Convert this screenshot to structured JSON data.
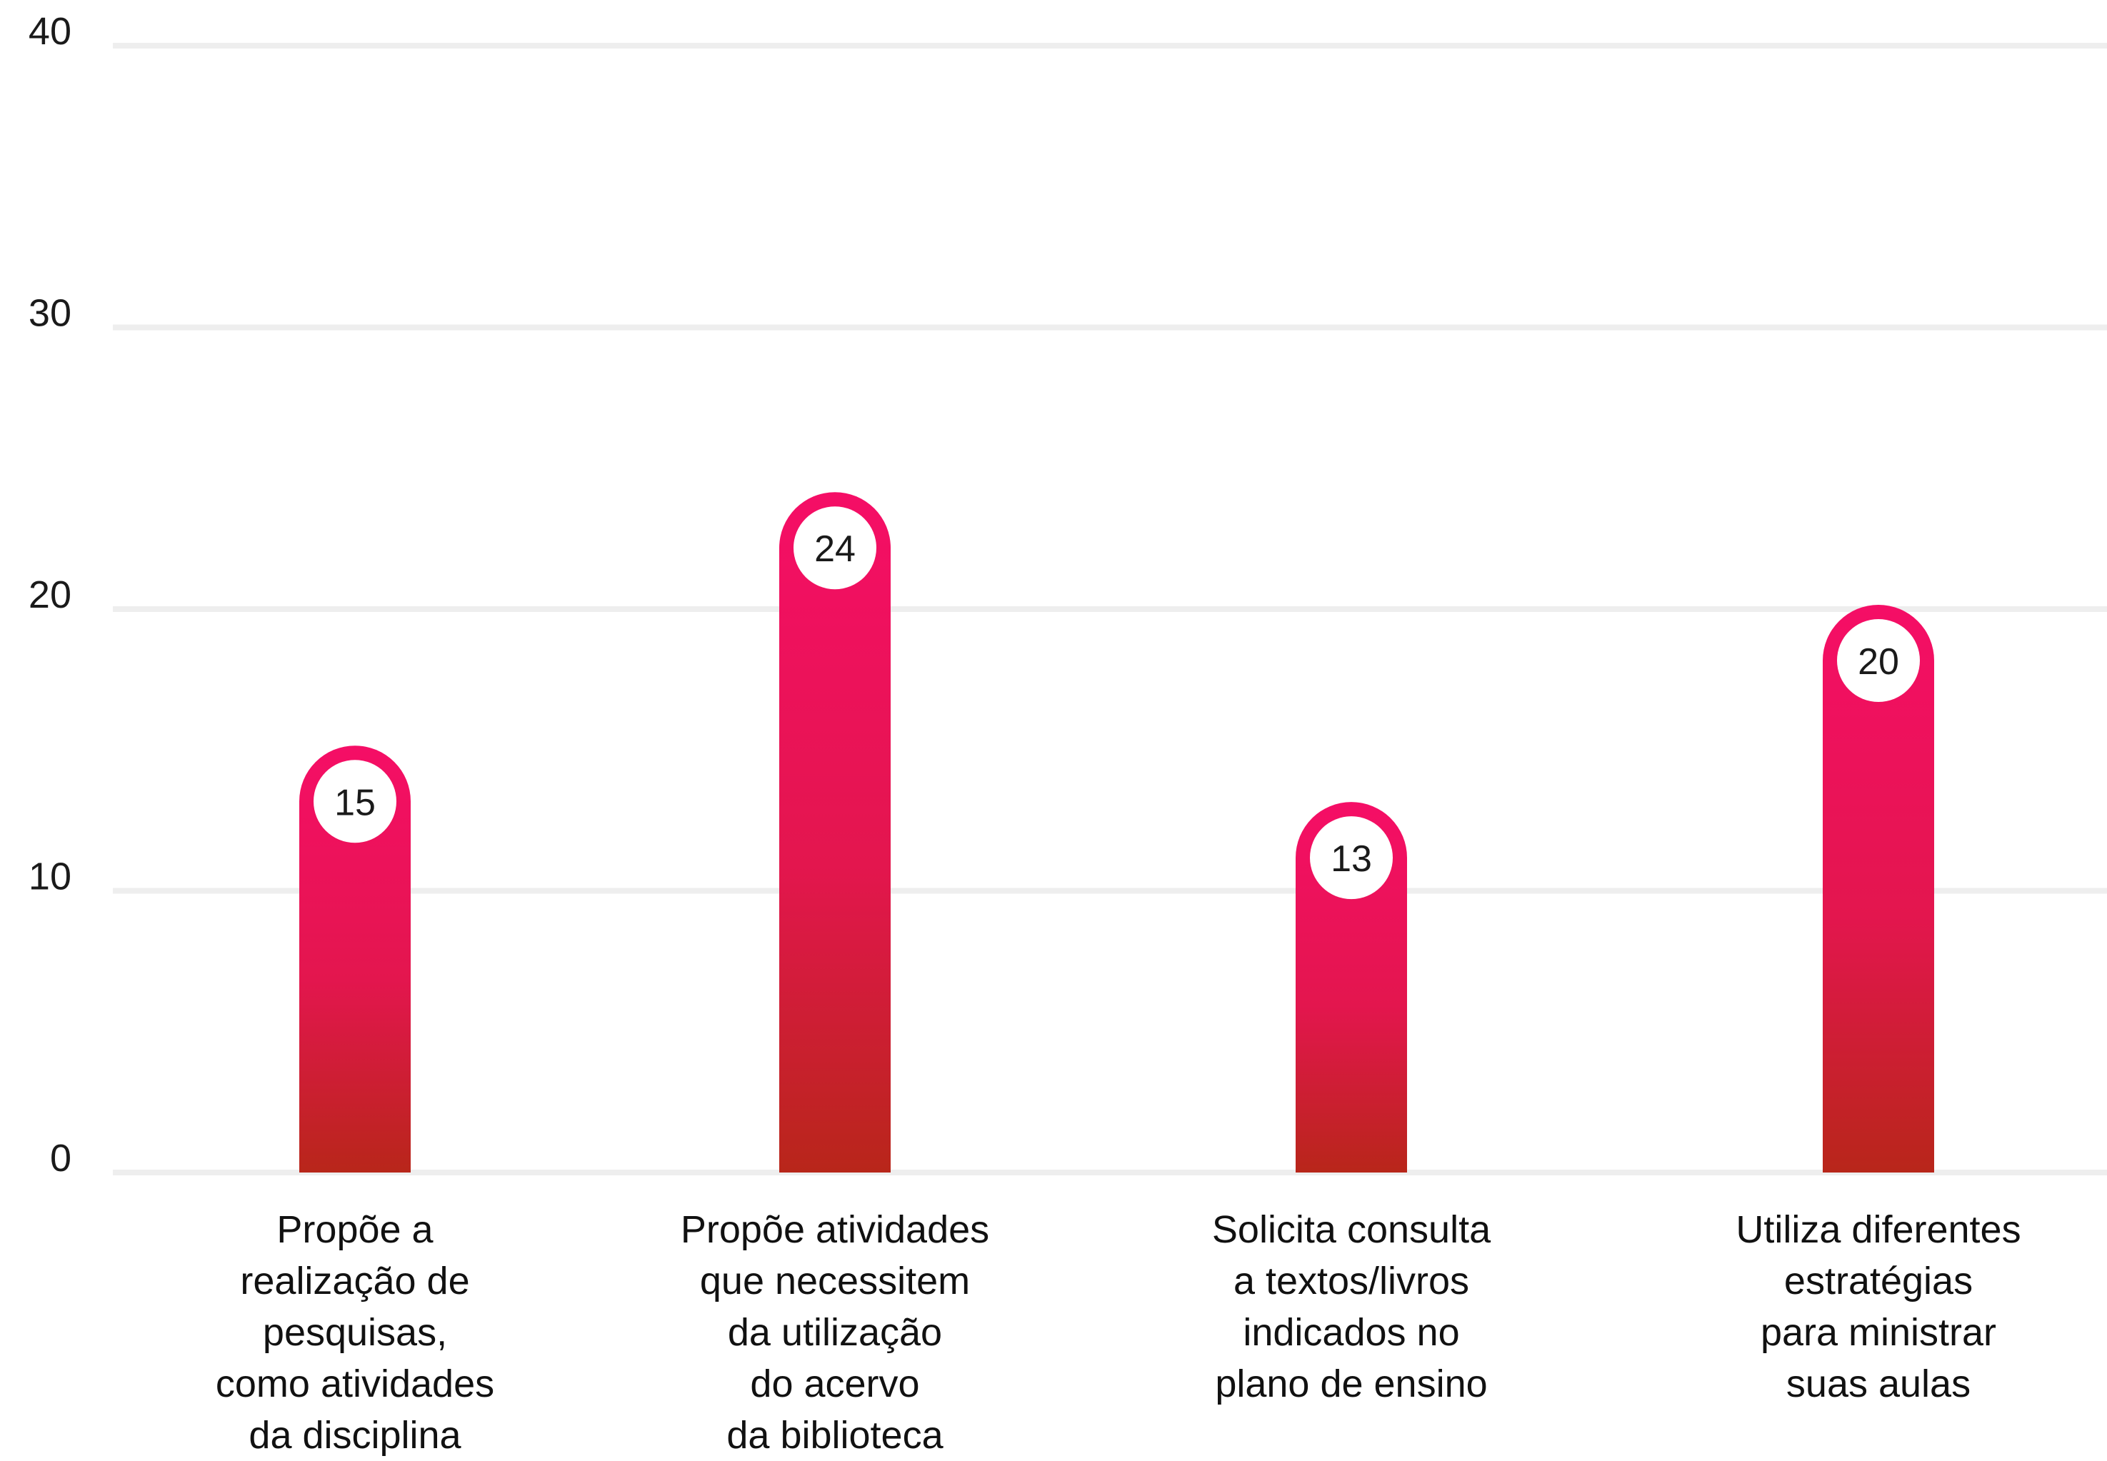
{
  "chart_data": {
    "type": "bar",
    "title": "",
    "xlabel": "",
    "ylabel": "",
    "ylim": [
      0,
      40
    ],
    "yticks": [
      0,
      10,
      20,
      30,
      40
    ],
    "grid": true,
    "categories": [
      "Propõe a\nrealização de\npesquisas,\ncomo atividades\nda disciplina",
      "Propõe atividades\nque necessitem\nda utilização\ndo acervo\nda biblioteca",
      "Solicita consulta\na textos/livros\nindicados no\nplano de ensino",
      "Utiliza diferentes\nestratégias\npara ministrar\nsuas aulas"
    ],
    "values": [
      15,
      24,
      13,
      20
    ],
    "colors": {
      "bar_top": "#f50e66",
      "bar_bottom": "#b8261a",
      "grid": "#eeeeee",
      "label_bg": "#ffffff"
    }
  }
}
